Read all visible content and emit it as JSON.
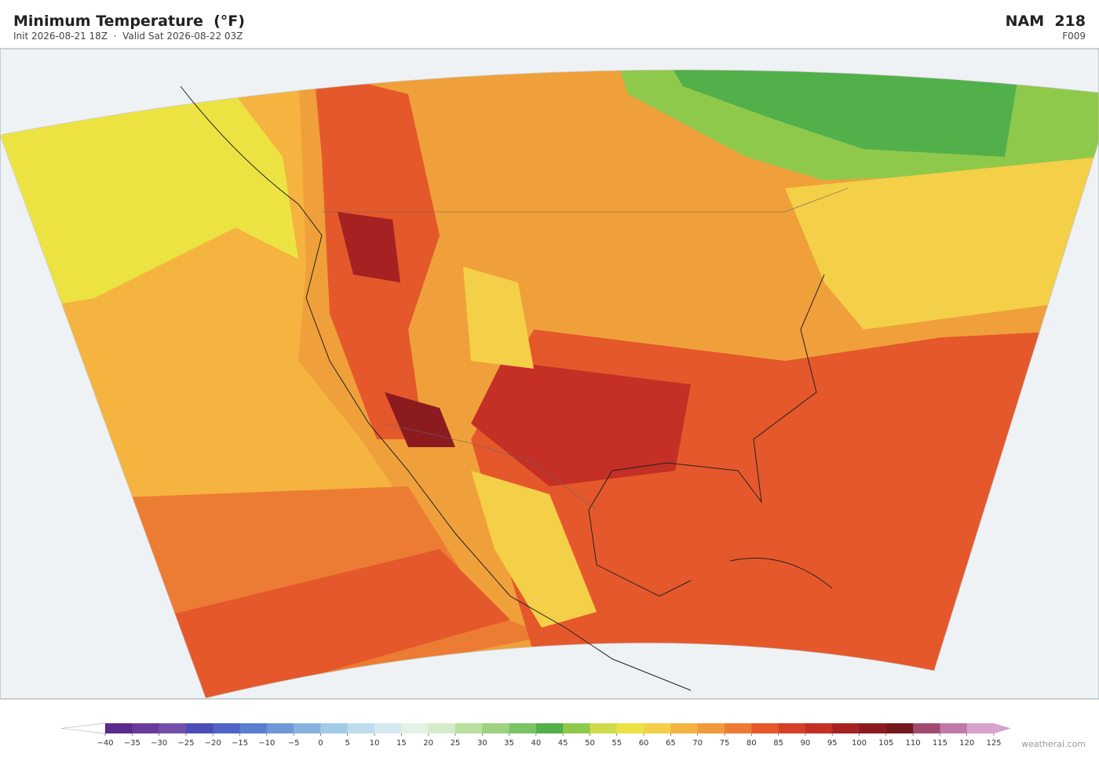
{
  "header": {
    "title": "Minimum Temperature  (°F)",
    "subtitle": "Init 2026-08-21 18Z  ·  Valid Sat 2026-08-22 03Z",
    "model": "NAM  218",
    "forecast_hour": "F009"
  },
  "colorbar": {
    "ticks": [
      {
        "value": -40,
        "label": "−40"
      },
      {
        "value": -35,
        "label": "−35"
      },
      {
        "value": -30,
        "label": "−30"
      },
      {
        "value": -25,
        "label": "−25"
      },
      {
        "value": -20,
        "label": "−20"
      },
      {
        "value": -15,
        "label": "−15"
      },
      {
        "value": -10,
        "label": "−10"
      },
      {
        "value": -5,
        "label": "−5"
      },
      0,
      5,
      10,
      15,
      20,
      25,
      30,
      35,
      40,
      45,
      50,
      55,
      60,
      65,
      70,
      75,
      80,
      85,
      90,
      95,
      100,
      105,
      110,
      115,
      120,
      125
    ],
    "colors": [
      "#5b2a8f",
      "#6a3a9c",
      "#7250aa",
      "#4b4cb8",
      "#4f63c8",
      "#5b7dd1",
      "#6e98d8",
      "#87b3e0",
      "#a3cbe8",
      "#bfdcee",
      "#d5eaf0",
      "#e4f2e6",
      "#d5ecc8",
      "#b9e09e",
      "#9dd27f",
      "#7cc463",
      "#52b04a",
      "#8fc94c",
      "#cddc4a",
      "#ece343",
      "#f4cf48",
      "#f4b43f",
      "#f19a3a",
      "#ec7c33",
      "#e5582b",
      "#d73e27",
      "#c42f26",
      "#a52122",
      "#8c1b1f",
      "#74181d",
      "#a04a72",
      "#c078a8",
      "#d7a2cc"
    ]
  },
  "credit": "weatherai.com"
}
